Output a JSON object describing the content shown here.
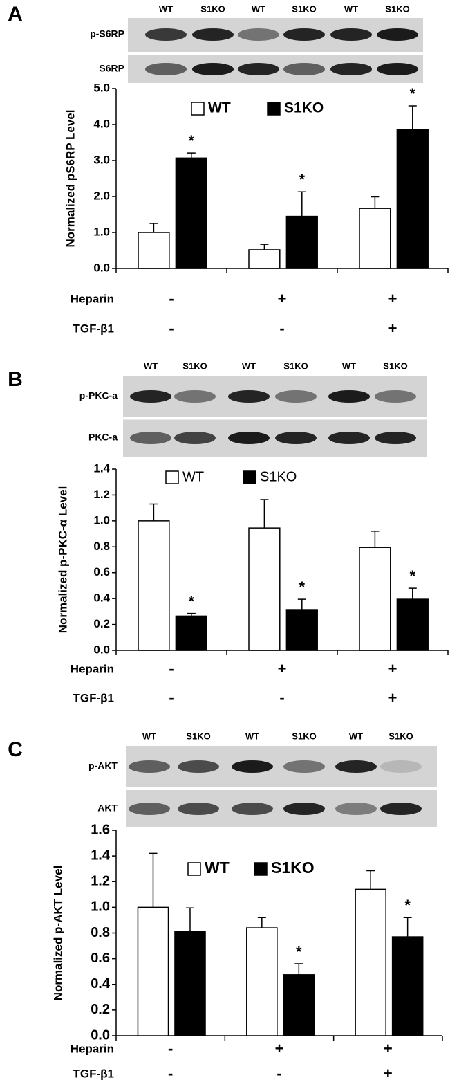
{
  "chart_data": [
    {
      "type": "bar",
      "panel": "A",
      "lanes": [
        "WT",
        "S1KO",
        "WT",
        "S1KO",
        "WT",
        "S1KO"
      ],
      "blot_rows": [
        "p-S6RP",
        "S6RP"
      ],
      "y_label": "Normalized pS6RP Level",
      "categories": [
        null,
        null,
        null
      ],
      "series": [
        {
          "name": "WT",
          "color": "#ffffff",
          "values": [
            1.0,
            0.52,
            1.67
          ],
          "errors": [
            0.25,
            0.15,
            0.32
          ],
          "markers": [
            null,
            null,
            null
          ]
        },
        {
          "name": "S1KO",
          "color": "#000000",
          "values": [
            3.07,
            1.45,
            3.87
          ],
          "errors": [
            0.14,
            0.68,
            0.65
          ],
          "markers": [
            "*",
            "*",
            "*"
          ]
        }
      ],
      "ylim": [
        0,
        5
      ],
      "yticks": [
        {
          "value": 0,
          "label": "0.0"
        },
        {
          "value": 1,
          "label": "1.0"
        },
        {
          "value": 2,
          "label": "2.0"
        },
        {
          "value": 3,
          "label": "3.0"
        },
        {
          "value": 4,
          "label": "4.0"
        },
        {
          "value": 5,
          "label": "5.0"
        }
      ],
      "treatments": [
        {
          "name": "Heparin",
          "levels": [
            "-",
            "+",
            "+"
          ]
        },
        {
          "name": "TGF-β1",
          "levels": [
            "-",
            "-",
            "+"
          ]
        }
      ]
    },
    {
      "type": "bar",
      "panel": "B",
      "lanes": [
        "WT",
        "S1KO",
        "WT",
        "S1KO",
        "WT",
        "S1KO"
      ],
      "blot_rows": [
        "p-PKC-a",
        "PKC-a"
      ],
      "y_label": "Normalized p-PKC-α Level",
      "categories": [
        null,
        null,
        null
      ],
      "series": [
        {
          "name": "WT",
          "color": "#ffffff",
          "values": [
            1.0,
            0.945,
            0.795
          ],
          "errors": [
            0.13,
            0.22,
            0.125
          ],
          "markers": [
            null,
            null,
            null
          ]
        },
        {
          "name": "S1KO",
          "color": "#000000",
          "values": [
            0.265,
            0.315,
            0.395
          ],
          "errors": [
            0.02,
            0.08,
            0.085
          ],
          "markers": [
            "*",
            "*",
            "*"
          ]
        }
      ],
      "ylim": [
        0,
        1.4
      ],
      "yticks": [
        {
          "value": 0,
          "label": "0.0"
        },
        0.2,
        0.4,
        0.6,
        0.8,
        {
          "value": 1,
          "label": "1.0"
        },
        1.2,
        1.4
      ],
      "treatments": [
        {
          "name": "Heparin",
          "levels": [
            "-",
            "+",
            "+"
          ]
        },
        {
          "name": "TGF-β1",
          "levels": [
            "-",
            "-",
            "+"
          ]
        }
      ]
    },
    {
      "type": "bar",
      "panel": "C",
      "lanes": [
        "WT",
        "S1KO",
        "WT",
        "S1KO",
        "WT",
        "S1KO"
      ],
      "blot_rows": [
        "p-AKT",
        "AKT"
      ],
      "y_label": "Normalized p-AKT Level",
      "categories": [
        null,
        null,
        null
      ],
      "series": [
        {
          "name": "WT",
          "color": "#ffffff",
          "values": [
            1.0,
            0.84,
            1.14
          ],
          "errors": [
            0.42,
            0.08,
            0.145
          ],
          "markers": [
            null,
            null,
            null
          ]
        },
        {
          "name": "S1KO",
          "color": "#000000",
          "values": [
            0.81,
            0.475,
            0.77
          ],
          "errors": [
            0.185,
            0.085,
            0.15
          ],
          "markers": [
            null,
            "*",
            "*"
          ]
        }
      ],
      "ylim": [
        0,
        1.6
      ],
      "yticks": [
        {
          "value": 0,
          "label": "0.0"
        },
        0.2,
        0.4,
        0.6,
        0.8,
        {
          "value": 1,
          "label": "1.0"
        },
        1.2,
        1.4,
        1.6
      ],
      "treatments": [
        {
          "name": "Heparin",
          "levels": [
            "-",
            "+",
            "+"
          ]
        },
        {
          "name": "TGF-β1",
          "levels": [
            "-",
            "-",
            "+"
          ]
        }
      ]
    }
  ]
}
